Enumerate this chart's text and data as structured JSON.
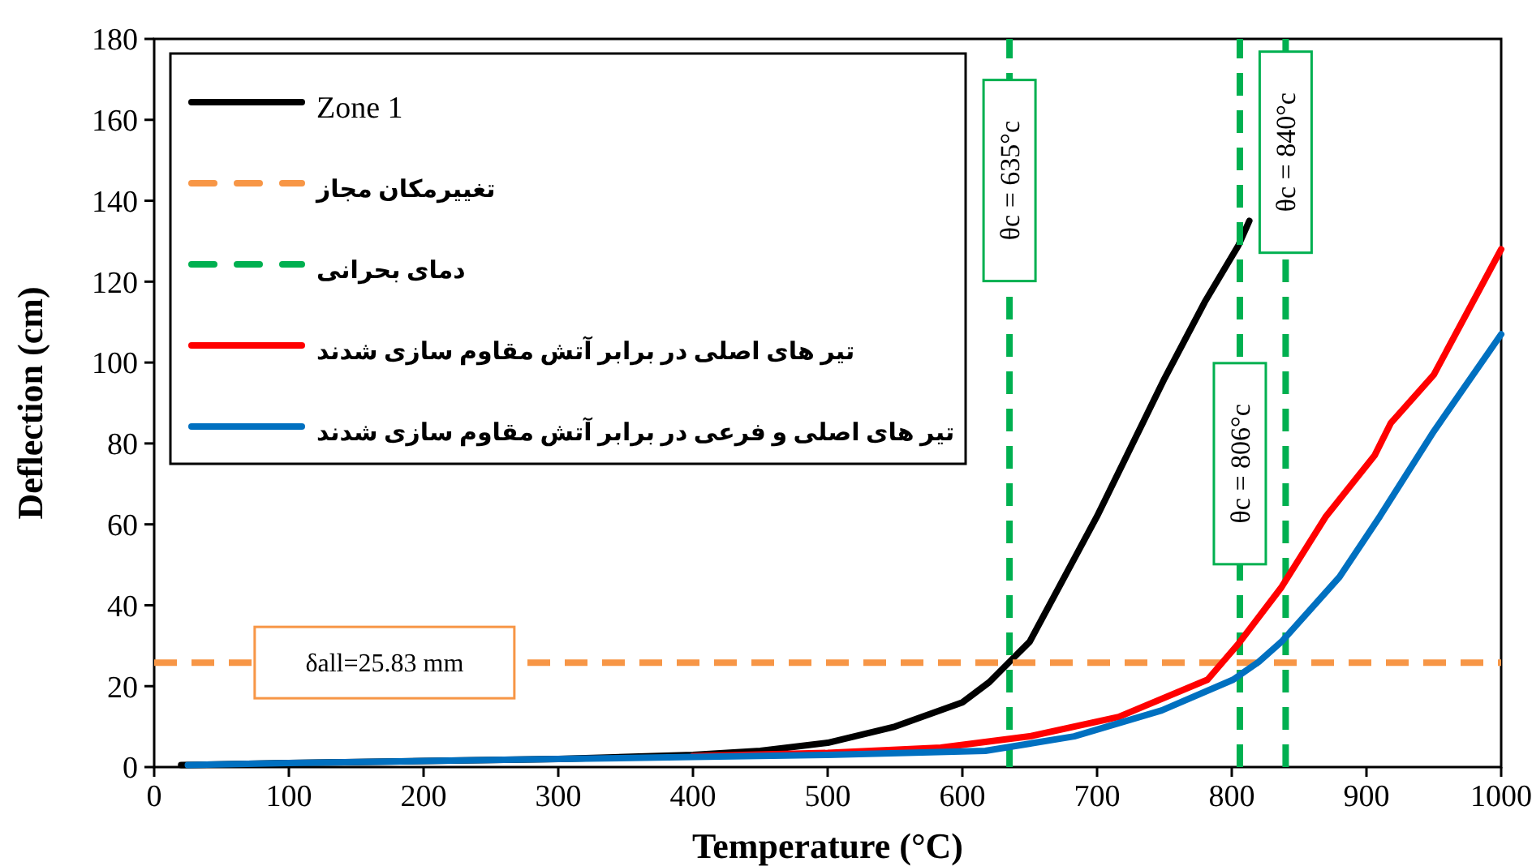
{
  "chart_data": {
    "type": "line",
    "xlabel": "Temperature (°C)",
    "ylabel": "Deflection (cm)",
    "xlim": [
      0,
      1000
    ],
    "ylim": [
      0,
      180
    ],
    "xticks": [
      0,
      100,
      200,
      300,
      400,
      500,
      600,
      700,
      800,
      900,
      1000
    ],
    "yticks": [
      0,
      20,
      40,
      60,
      80,
      100,
      120,
      140,
      160,
      180
    ],
    "grid": false,
    "legend": "top left",
    "marker": "none",
    "series": [
      {
        "name": "Zone 1",
        "color": "#000000",
        "line_style": "solid",
        "x": [
          20,
          100,
          200,
          300,
          400,
          450,
          500,
          550,
          600,
          620,
          635,
          650,
          700,
          750,
          780,
          805,
          813
        ],
        "values": [
          0.5,
          1,
          1.5,
          2,
          3,
          4,
          6,
          10,
          16,
          21,
          26,
          31,
          62,
          96,
          115,
          129,
          135
        ]
      },
      {
        "name": "تغییرمکان مجاز",
        "color": "#f79646",
        "line_style": "dashed",
        "x": [
          0,
          1000
        ],
        "values": [
          25.83,
          25.83
        ]
      },
      {
        "name": "دمای بحرانی",
        "color": "#00b050",
        "line_style": "dashed",
        "x": [
          635,
          635,
          null,
          806,
          806,
          null,
          840,
          840
        ],
        "values": [
          0,
          180,
          null,
          0,
          180,
          null,
          0,
          180
        ]
      },
      {
        "name": "تیر های اصلی در برابر آتش مقاوم سازی شدند",
        "color": "#ff0000",
        "line_style": "solid",
        "x": [
          400,
          500,
          584,
          650,
          716,
          782,
          805,
          837,
          870,
          906,
          918,
          950,
          1000
        ],
        "values": [
          2.7,
          3.5,
          4.8,
          7.6,
          12.4,
          21.6,
          30.5,
          44.5,
          62,
          77,
          85,
          97,
          128
        ]
      },
      {
        "name": "تیر های اصلی و فرعی در برابر آتش مقاوم سازی شدند",
        "color": "#0070c0",
        "line_style": "solid",
        "x": [
          25,
          100,
          200,
          300,
          400,
          500,
          617,
          683,
          748,
          801,
          820,
          837,
          880,
          910,
          950,
          1000
        ],
        "values": [
          0.5,
          1,
          1.5,
          2,
          2.5,
          3,
          4,
          7.6,
          14,
          21.6,
          26,
          31,
          47,
          62,
          83,
          107
        ]
      }
    ],
    "annotations": [
      {
        "text": "θc = 635°c",
        "x": 635,
        "y": 145
      },
      {
        "text": "θc = 806°c",
        "x": 806,
        "y": 75
      },
      {
        "text": "θc = 840°c",
        "x": 840,
        "y": 152
      },
      {
        "text": "δall=25.83 mm",
        "x": 171,
        "y": 25.83
      }
    ]
  }
}
